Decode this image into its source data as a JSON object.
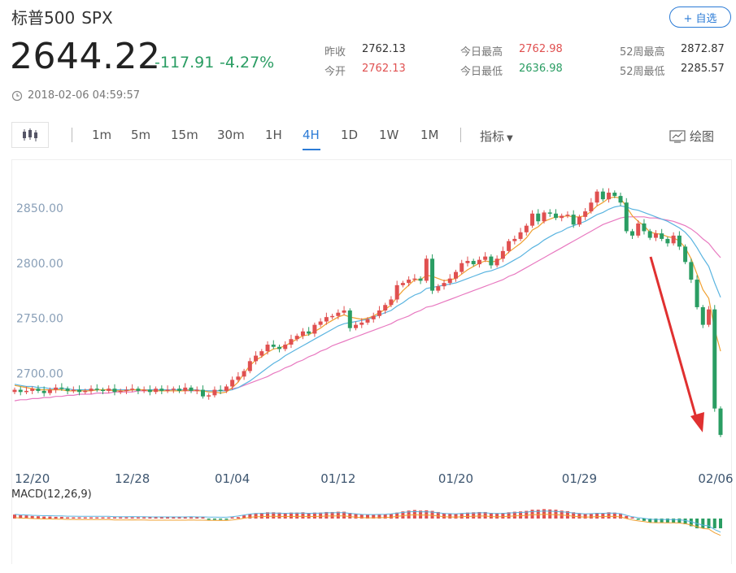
{
  "header": {
    "name": "标普500",
    "code": "SPX",
    "add_label": "+ 自选",
    "price": "2644.22",
    "change": "-117.91",
    "change_pct": "-4.27%",
    "timestamp": "2018-02-06 04:59:57"
  },
  "stats": [
    {
      "label": "昨收",
      "value": "2762.13",
      "color": "neutral"
    },
    {
      "label": "今开",
      "value": "2762.13",
      "color": "red"
    },
    {
      "label": "今日最高",
      "value": "2762.98",
      "color": "red"
    },
    {
      "label": "今日最低",
      "value": "2636.98",
      "color": "green"
    },
    {
      "label": "52周最高",
      "value": "2872.87",
      "color": "neutral"
    },
    {
      "label": "52周最低",
      "value": "2285.57",
      "color": "neutral"
    }
  ],
  "toolbar": {
    "periods": [
      "1m",
      "5m",
      "15m",
      "30m",
      "1H",
      "4H",
      "1D",
      "1W",
      "1M"
    ],
    "active": "4H",
    "indicator_label": "指标",
    "draw_label": "绘图",
    "kline_icon": "candlestick-icon",
    "draw_icon": "draw-chart-icon"
  },
  "colors": {
    "up": "#e05050",
    "down": "#2a9d63",
    "accent": "#2b7bd6",
    "ma_short": "#f0a030",
    "ma_mid": "#5ab4e0",
    "ma_long": "#e879c0",
    "arrow": "#e03030"
  },
  "chart_data": [
    {
      "type": "candlestick",
      "x_tick_labels": [
        "12/20",
        "12/28",
        "01/04",
        "01/12",
        "01/20",
        "01/29",
        "02/06"
      ],
      "y_tick_labels": [
        "2850.00",
        "2800.00",
        "2750.00",
        "2700.00"
      ],
      "y_ticks": [
        2850,
        2800,
        2750,
        2700
      ],
      "ylim": [
        2640,
        2880
      ],
      "grid": false,
      "close": [
        2685,
        2683,
        2684,
        2686,
        2684,
        2682,
        2685,
        2687,
        2686,
        2684,
        2685,
        2683,
        2684,
        2686,
        2685,
        2684,
        2686,
        2683,
        2684,
        2685,
        2686,
        2684,
        2685,
        2683,
        2686,
        2684,
        2685,
        2686,
        2684,
        2687,
        2684,
        2685,
        2679,
        2680,
        2685,
        2684,
        2688,
        2694,
        2697,
        2702,
        2711,
        2716,
        2720,
        2726,
        2724,
        2722,
        2726,
        2731,
        2734,
        2738,
        2736,
        2744,
        2747,
        2751,
        2752,
        2755,
        2757,
        2741,
        2744,
        2746,
        2749,
        2752,
        2757,
        2762,
        2767,
        2780,
        2782,
        2785,
        2786,
        2784,
        2804,
        2775,
        2779,
        2782,
        2786,
        2792,
        2800,
        2802,
        2799,
        2803,
        2806,
        2798,
        2804,
        2811,
        2820,
        2822,
        2828,
        2834,
        2845,
        2838,
        2846,
        2845,
        2841,
        2843,
        2844,
        2835,
        2842,
        2847,
        2855,
        2865,
        2858,
        2864,
        2861,
        2855,
        2829,
        2825,
        2836,
        2829,
        2823,
        2827,
        2822,
        2818,
        2825,
        2815,
        2801,
        2785,
        2760,
        2744,
        2758,
        2668,
        2644
      ],
      "ma_short": [
        2689,
        2688,
        2687,
        2686,
        2685,
        2685,
        2685,
        2685,
        2685,
        2684,
        2684,
        2684,
        2684,
        2684,
        2685,
        2685,
        2685,
        2684,
        2684,
        2684,
        2685,
        2685,
        2685,
        2684,
        2684,
        2684,
        2684,
        2684,
        2684,
        2684,
        2685,
        2684,
        2684,
        2683,
        2683,
        2682,
        2683,
        2687,
        2692,
        2700,
        2707,
        2712,
        2715,
        2719,
        2722,
        2723,
        2725,
        2728,
        2731,
        2734,
        2735,
        2738,
        2741,
        2745,
        2748,
        2751,
        2753,
        2751,
        2750,
        2749,
        2750,
        2752,
        2755,
        2758,
        2762,
        2769,
        2775,
        2780,
        2785,
        2785,
        2789,
        2788,
        2786,
        2784,
        2785,
        2786,
        2790,
        2794,
        2797,
        2800,
        2802,
        2801,
        2802,
        2805,
        2810,
        2814,
        2818,
        2823,
        2830,
        2833,
        2838,
        2840,
        2842,
        2842,
        2843,
        2842,
        2842,
        2843,
        2847,
        2852,
        2855,
        2859,
        2860,
        2859,
        2851,
        2843,
        2838,
        2834,
        2828,
        2827,
        2826,
        2824,
        2823,
        2820,
        2814,
        2804,
        2790,
        2776,
        2768,
        2740,
        2720
      ],
      "ma_mid": [
        2690,
        2689,
        2688,
        2688,
        2687,
        2687,
        2686,
        2686,
        2686,
        2686,
        2685,
        2685,
        2685,
        2685,
        2685,
        2685,
        2685,
        2685,
        2685,
        2685,
        2685,
        2685,
        2685,
        2685,
        2685,
        2685,
        2685,
        2685,
        2685,
        2685,
        2685,
        2685,
        2684,
        2684,
        2684,
        2684,
        2684,
        2685,
        2687,
        2690,
        2693,
        2697,
        2701,
        2705,
        2709,
        2712,
        2716,
        2719,
        2722,
        2725,
        2728,
        2731,
        2734,
        2737,
        2740,
        2743,
        2745,
        2746,
        2747,
        2748,
        2749,
        2751,
        2753,
        2755,
        2757,
        2761,
        2764,
        2768,
        2771,
        2773,
        2777,
        2778,
        2779,
        2780,
        2781,
        2782,
        2784,
        2786,
        2788,
        2790,
        2792,
        2793,
        2795,
        2797,
        2800,
        2803,
        2806,
        2810,
        2814,
        2817,
        2821,
        2824,
        2827,
        2829,
        2832,
        2834,
        2836,
        2838,
        2841,
        2844,
        2846,
        2849,
        2851,
        2852,
        2851,
        2849,
        2848,
        2846,
        2844,
        2842,
        2840,
        2838,
        2835,
        2832,
        2828,
        2822,
        2814,
        2805,
        2797,
        2782,
        2769
      ],
      "ma_long": [
        2675,
        2676,
        2676,
        2677,
        2677,
        2678,
        2678,
        2679,
        2679,
        2680,
        2680,
        2681,
        2681,
        2681,
        2682,
        2682,
        2682,
        2683,
        2683,
        2683,
        2683,
        2684,
        2684,
        2684,
        2684,
        2684,
        2684,
        2684,
        2684,
        2684,
        2684,
        2684,
        2684,
        2684,
        2684,
        2684,
        2685,
        2686,
        2687,
        2689,
        2691,
        2693,
        2695,
        2697,
        2700,
        2702,
        2705,
        2707,
        2710,
        2712,
        2715,
        2717,
        2720,
        2722,
        2725,
        2727,
        2729,
        2731,
        2733,
        2735,
        2737,
        2739,
        2741,
        2743,
        2745,
        2748,
        2750,
        2752,
        2755,
        2757,
        2760,
        2761,
        2763,
        2765,
        2767,
        2769,
        2771,
        2773,
        2775,
        2777,
        2779,
        2781,
        2783,
        2785,
        2788,
        2790,
        2793,
        2796,
        2799,
        2802,
        2805,
        2808,
        2811,
        2814,
        2817,
        2820,
        2823,
        2826,
        2829,
        2832,
        2835,
        2837,
        2839,
        2841,
        2842,
        2842,
        2842,
        2842,
        2841,
        2841,
        2840,
        2839,
        2838,
        2836,
        2834,
        2831,
        2827,
        2822,
        2818,
        2811,
        2805
      ]
    },
    {
      "type": "bar",
      "title": "MACD(12,26,9)"
    }
  ]
}
